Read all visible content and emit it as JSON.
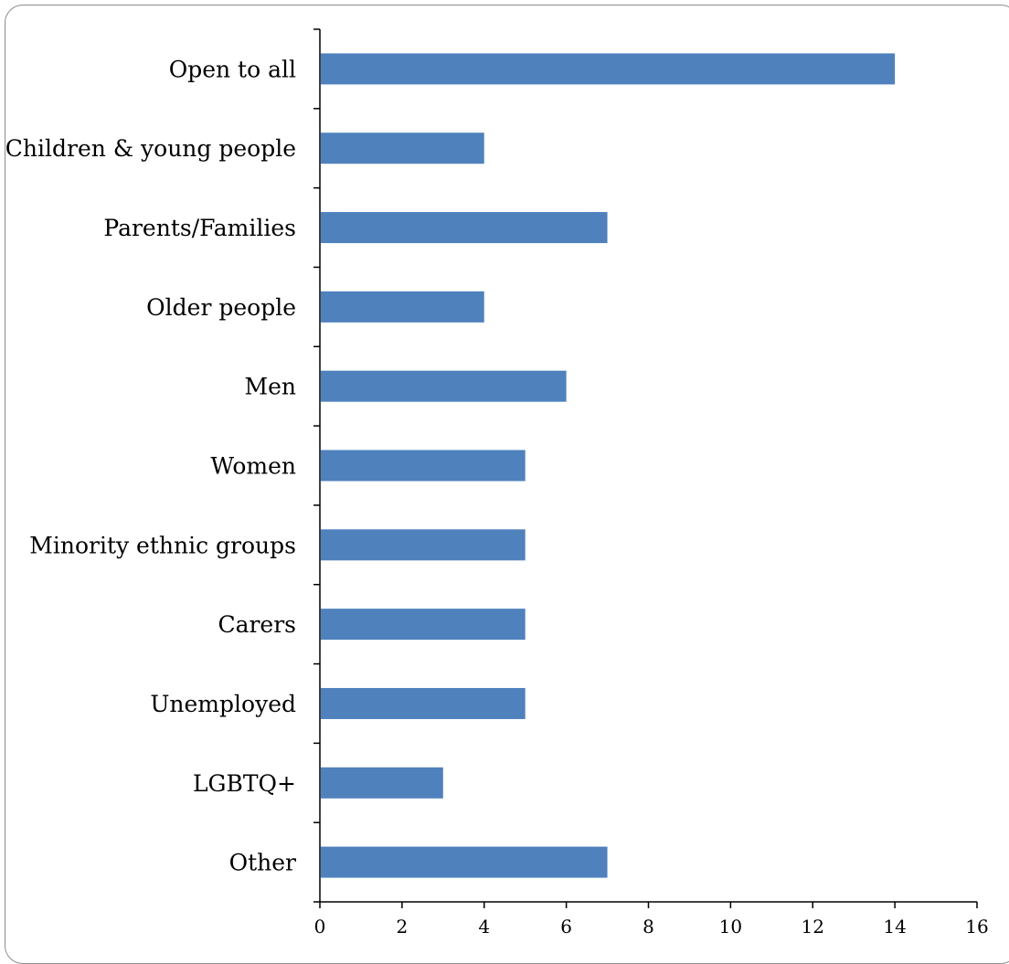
{
  "chart_data": {
    "type": "bar",
    "orientation": "horizontal",
    "categories": [
      "Open to all",
      "Children & young people",
      "Parents/Families",
      "Older people",
      "Men",
      "Women",
      "Minority ethnic groups",
      "Carers",
      "Unemployed",
      "LGBTQ+",
      "Other"
    ],
    "values": [
      14,
      4,
      7,
      4,
      6,
      5,
      5,
      5,
      5,
      3,
      7
    ],
    "title": "",
    "xlabel": "",
    "ylabel": "",
    "xlim": [
      0,
      16
    ],
    "x_ticks": [
      "0",
      "2",
      "4",
      "6",
      "8",
      "10",
      "12",
      "14",
      "16"
    ],
    "grid": false,
    "legend": "none",
    "bar_color": "#4f81bd"
  }
}
